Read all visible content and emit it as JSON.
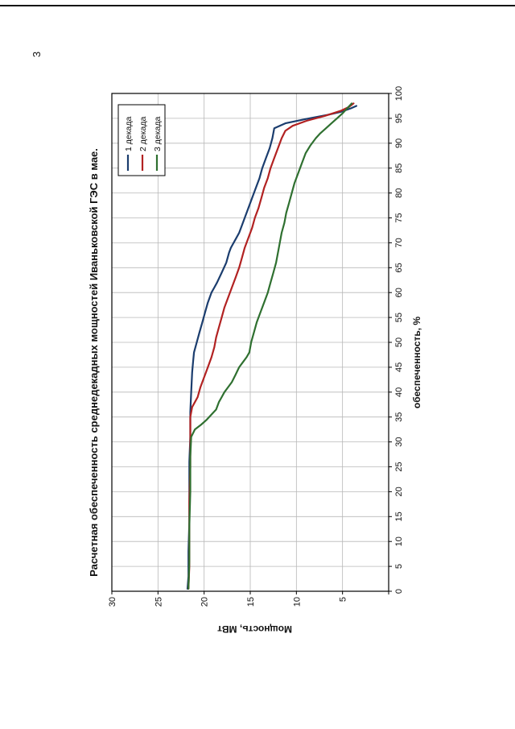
{
  "page": {
    "number": "3"
  },
  "chart_data": {
    "type": "line",
    "title": "Расчетная обеспеченность среднедекадных мощностей Иваньковской ГЭС в мае.",
    "xlabel": "обеспеченность, %",
    "ylabel": "Мощность, МВт",
    "xlim": [
      0,
      100
    ],
    "xtick": 5,
    "ylim": [
      0,
      30
    ],
    "ytick": 5,
    "grid": true,
    "grid_color": "#b8b8b8",
    "legend_position": "top-right-inside",
    "orientation_on_page": "rotated-90-ccw",
    "series": [
      {
        "name": "1 декада",
        "color": "#1b3d6e",
        "points": [
          [
            0.5,
            21.8
          ],
          [
            3,
            21.7
          ],
          [
            8,
            21.7
          ],
          [
            14,
            21.6
          ],
          [
            20,
            21.6
          ],
          [
            26,
            21.6
          ],
          [
            31,
            21.5
          ],
          [
            36,
            21.5
          ],
          [
            40,
            21.4
          ],
          [
            44,
            21.3
          ],
          [
            46,
            21.2
          ],
          [
            48,
            21.1
          ],
          [
            50,
            20.8
          ],
          [
            52,
            20.5
          ],
          [
            54,
            20.2
          ],
          [
            56,
            19.9
          ],
          [
            58,
            19.6
          ],
          [
            60,
            19.2
          ],
          [
            61,
            18.9
          ],
          [
            62,
            18.6
          ],
          [
            64,
            18.1
          ],
          [
            66,
            17.6
          ],
          [
            68,
            17.3
          ],
          [
            69,
            17.1
          ],
          [
            71,
            16.5
          ],
          [
            72,
            16.2
          ],
          [
            73,
            16.0
          ],
          [
            75,
            15.6
          ],
          [
            77,
            15.2
          ],
          [
            79,
            14.8
          ],
          [
            81,
            14.4
          ],
          [
            83,
            14.0
          ],
          [
            85,
            13.7
          ],
          [
            87,
            13.3
          ],
          [
            89,
            12.9
          ],
          [
            91,
            12.6
          ],
          [
            93,
            12.4
          ],
          [
            94,
            11.2
          ],
          [
            95,
            8.6
          ],
          [
            95.7,
            6.6
          ],
          [
            96.3,
            5.2
          ],
          [
            97,
            4.1
          ],
          [
            97.5,
            3.5
          ]
        ]
      },
      {
        "name": "2 декада",
        "color": "#b22222",
        "points": [
          [
            0.5,
            21.7
          ],
          [
            5,
            21.6
          ],
          [
            12,
            21.6
          ],
          [
            18,
            21.6
          ],
          [
            25,
            21.5
          ],
          [
            31,
            21.5
          ],
          [
            35,
            21.5
          ],
          [
            37,
            21.3
          ],
          [
            38,
            21.0
          ],
          [
            39,
            20.7
          ],
          [
            41,
            20.4
          ],
          [
            43,
            20.0
          ],
          [
            45,
            19.6
          ],
          [
            47,
            19.2
          ],
          [
            49,
            18.9
          ],
          [
            51,
            18.7
          ],
          [
            53,
            18.4
          ],
          [
            55,
            18.1
          ],
          [
            57,
            17.8
          ],
          [
            59,
            17.4
          ],
          [
            61,
            17.0
          ],
          [
            63,
            16.6
          ],
          [
            65,
            16.2
          ],
          [
            67,
            15.9
          ],
          [
            69,
            15.6
          ],
          [
            71,
            15.2
          ],
          [
            73,
            14.8
          ],
          [
            75,
            14.5
          ],
          [
            77,
            14.1
          ],
          [
            79,
            13.8
          ],
          [
            81,
            13.5
          ],
          [
            83,
            13.1
          ],
          [
            85,
            12.8
          ],
          [
            87,
            12.4
          ],
          [
            89,
            12.0
          ],
          [
            91,
            11.6
          ],
          [
            92.5,
            11.2
          ],
          [
            93.5,
            10.4
          ],
          [
            94.5,
            8.9
          ],
          [
            95.5,
            6.9
          ],
          [
            96.5,
            5.2
          ],
          [
            97.3,
            4.3
          ],
          [
            98,
            3.8
          ]
        ]
      },
      {
        "name": "3 декада",
        "color": "#2f7030",
        "points": [
          [
            0.5,
            21.7
          ],
          [
            6,
            21.6
          ],
          [
            13,
            21.6
          ],
          [
            20,
            21.5
          ],
          [
            27,
            21.5
          ],
          [
            31,
            21.4
          ],
          [
            32.5,
            21.0
          ],
          [
            33.5,
            20.3
          ],
          [
            34.5,
            19.7
          ],
          [
            35.5,
            19.2
          ],
          [
            36.5,
            18.7
          ],
          [
            38,
            18.4
          ],
          [
            39,
            18.1
          ],
          [
            40,
            17.8
          ],
          [
            41,
            17.4
          ],
          [
            42,
            17.0
          ],
          [
            43.5,
            16.6
          ],
          [
            45,
            16.2
          ],
          [
            46,
            15.8
          ],
          [
            47,
            15.4
          ],
          [
            48,
            15.1
          ],
          [
            50,
            14.9
          ],
          [
            52,
            14.6
          ],
          [
            54,
            14.3
          ],
          [
            56,
            13.9
          ],
          [
            58,
            13.5
          ],
          [
            60,
            13.1
          ],
          [
            62,
            12.8
          ],
          [
            64,
            12.5
          ],
          [
            66,
            12.2
          ],
          [
            68,
            12.0
          ],
          [
            70,
            11.8
          ],
          [
            72,
            11.6
          ],
          [
            74,
            11.3
          ],
          [
            76,
            11.1
          ],
          [
            78,
            10.8
          ],
          [
            80,
            10.5
          ],
          [
            82,
            10.2
          ],
          [
            84,
            9.8
          ],
          [
            86,
            9.4
          ],
          [
            88,
            9.0
          ],
          [
            89.5,
            8.5
          ],
          [
            91,
            7.9
          ],
          [
            92,
            7.4
          ],
          [
            93,
            6.8
          ],
          [
            94,
            6.2
          ],
          [
            95,
            5.6
          ],
          [
            96,
            5.0
          ],
          [
            97,
            4.5
          ],
          [
            98,
            4.0
          ]
        ]
      }
    ]
  }
}
